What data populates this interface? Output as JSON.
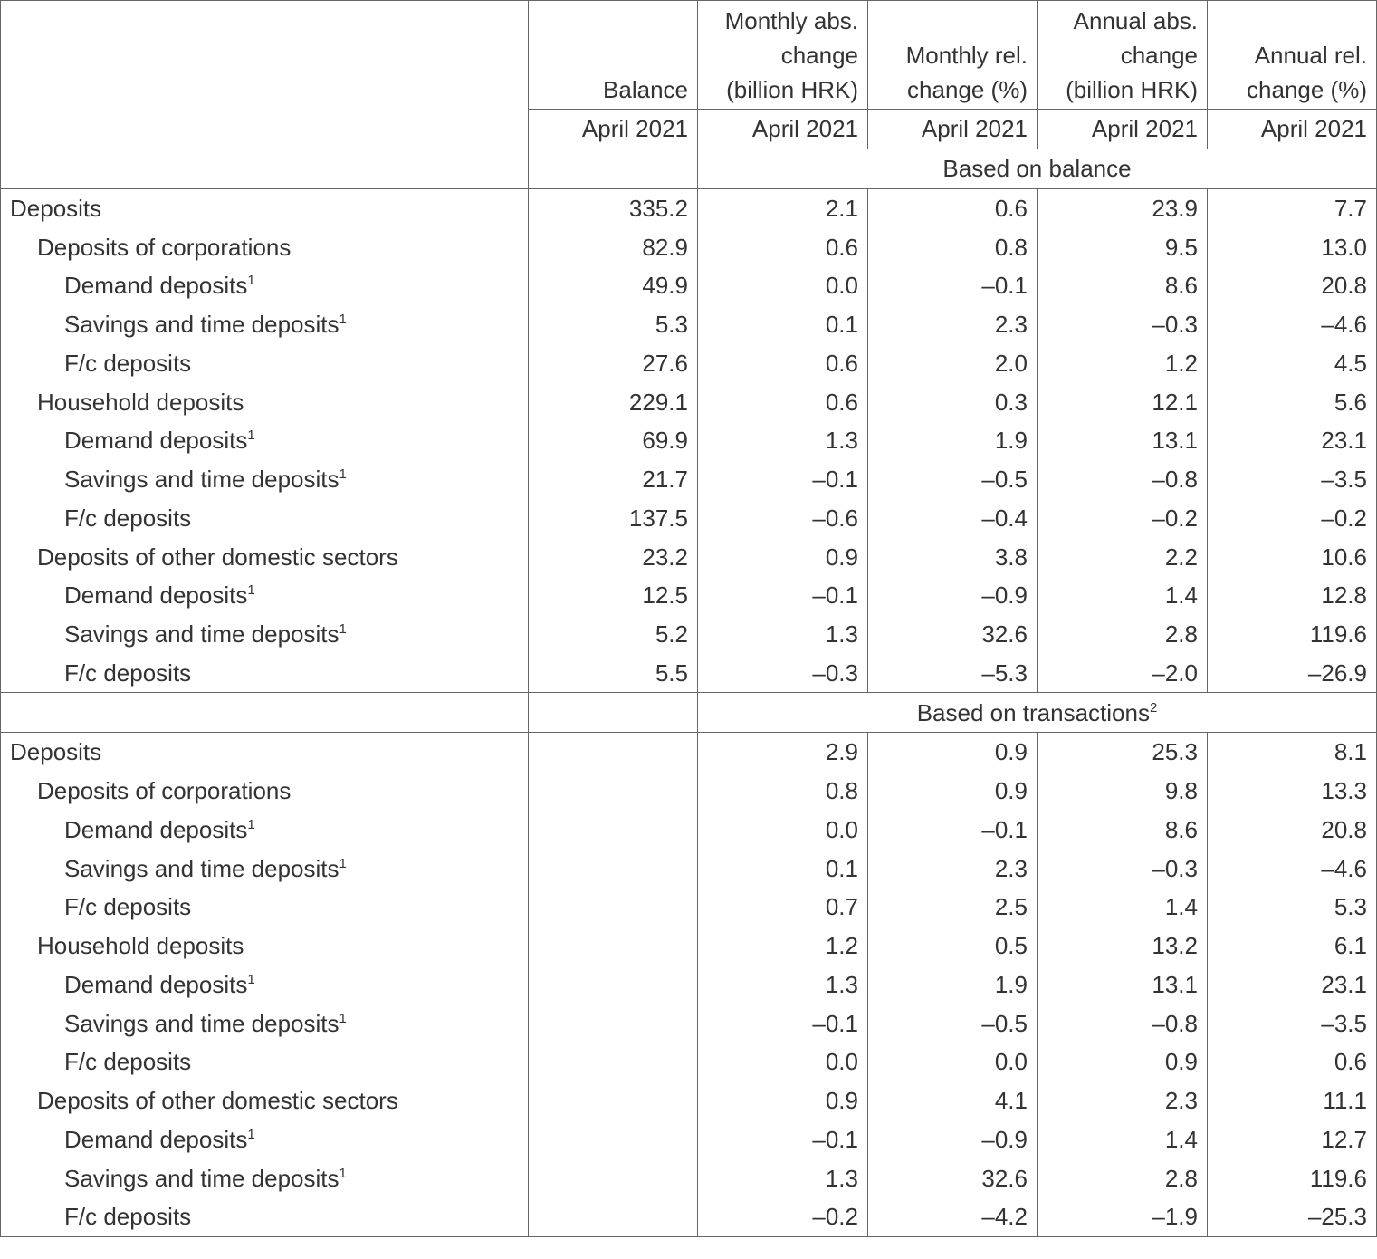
{
  "header": {
    "columns": [
      "Balance",
      "Monthly abs. change (billion HRK)",
      "Monthly rel. change (%)",
      "Annual abs. change (billion HRK)",
      "Annual rel. change (%)"
    ],
    "periods": [
      "April 2021",
      "April 2021",
      "April 2021",
      "April 2021",
      "April 2021"
    ]
  },
  "sections": [
    {
      "title": "Based on balance",
      "total": {
        "label": "Deposits",
        "values": [
          "335.2",
          "2.1",
          "0.6",
          "23.9",
          "7.7"
        ]
      },
      "groups": [
        {
          "label": "Deposits of corporations",
          "values": [
            "82.9",
            "0.6",
            "0.8",
            "9.5",
            "13.0"
          ],
          "items": [
            {
              "label": "Demand deposits",
              "note": "1",
              "values": [
                "49.9",
                "0.0",
                "–0.1",
                "8.6",
                "20.8"
              ]
            },
            {
              "label": "Savings and time deposits",
              "note": "1",
              "values": [
                "5.3",
                "0.1",
                "2.3",
                "–0.3",
                "–4.6"
              ]
            },
            {
              "label": "F/c deposits",
              "values": [
                "27.6",
                "0.6",
                "2.0",
                "1.2",
                "4.5"
              ]
            }
          ]
        },
        {
          "label": "Household deposits",
          "values": [
            "229.1",
            "0.6",
            "0.3",
            "12.1",
            "5.6"
          ],
          "items": [
            {
              "label": "Demand deposits",
              "note": "1",
              "values": [
                "69.9",
                "1.3",
                "1.9",
                "13.1",
                "23.1"
              ]
            },
            {
              "label": "Savings and time deposits",
              "note": "1",
              "values": [
                "21.7",
                "–0.1",
                "–0.5",
                "–0.8",
                "–3.5"
              ]
            },
            {
              "label": "F/c deposits",
              "values": [
                "137.5",
                "–0.6",
                "–0.4",
                "–0.2",
                "–0.2"
              ]
            }
          ]
        },
        {
          "label": "Deposits of other domestic sectors",
          "values": [
            "23.2",
            "0.9",
            "3.8",
            "2.2",
            "10.6"
          ],
          "items": [
            {
              "label": "Demand deposits",
              "note": "1",
              "values": [
                "12.5",
                "–0.1",
                "–0.9",
                "1.4",
                "12.8"
              ]
            },
            {
              "label": "Savings and time deposits",
              "note": "1",
              "values": [
                "5.2",
                "1.3",
                "32.6",
                "2.8",
                "119.6"
              ]
            },
            {
              "label": "F/c deposits",
              "values": [
                "5.5",
                "–0.3",
                "–5.3",
                "–2.0",
                "–26.9"
              ]
            }
          ]
        }
      ]
    },
    {
      "title": "Based on transactions",
      "title_note": "2",
      "total": {
        "label": "Deposits",
        "values": [
          "2.9",
          "0.9",
          "25.3",
          "8.1"
        ]
      },
      "groups": [
        {
          "label": "Deposits of corporations",
          "values": [
            "0.8",
            "0.9",
            "9.8",
            "13.3"
          ],
          "items": [
            {
              "label": "Demand deposits",
              "note": "1",
              "values": [
                "0.0",
                "–0.1",
                "8.6",
                "20.8"
              ]
            },
            {
              "label": "Savings and time deposits",
              "note": "1",
              "values": [
                "0.1",
                "2.3",
                "–0.3",
                "–4.6"
              ]
            },
            {
              "label": "F/c deposits",
              "values": [
                "0.7",
                "2.5",
                "1.4",
                "5.3"
              ]
            }
          ]
        },
        {
          "label": "Household deposits",
          "values": [
            "1.2",
            "0.5",
            "13.2",
            "6.1"
          ],
          "items": [
            {
              "label": "Demand deposits",
              "note": "1",
              "values": [
                "1.3",
                "1.9",
                "13.1",
                "23.1"
              ]
            },
            {
              "label": "Savings and time deposits",
              "note": "1",
              "values": [
                "–0.1",
                "–0.5",
                "–0.8",
                "–3.5"
              ]
            },
            {
              "label": "F/c deposits",
              "values": [
                "0.0",
                "0.0",
                "0.9",
                "0.6"
              ]
            }
          ]
        },
        {
          "label": "Deposits of other domestic sectors",
          "values": [
            "0.9",
            "4.1",
            "2.3",
            "11.1"
          ],
          "items": [
            {
              "label": "Demand deposits",
              "note": "1",
              "values": [
                "–0.1",
                "–0.9",
                "1.4",
                "12.7"
              ]
            },
            {
              "label": "Savings and time deposits",
              "note": "1",
              "values": [
                "1.3",
                "32.6",
                "2.8",
                "119.6"
              ]
            },
            {
              "label": "F/c deposits",
              "values": [
                "–0.2",
                "–4.2",
                "–1.9",
                "–25.3"
              ]
            }
          ]
        }
      ]
    }
  ]
}
